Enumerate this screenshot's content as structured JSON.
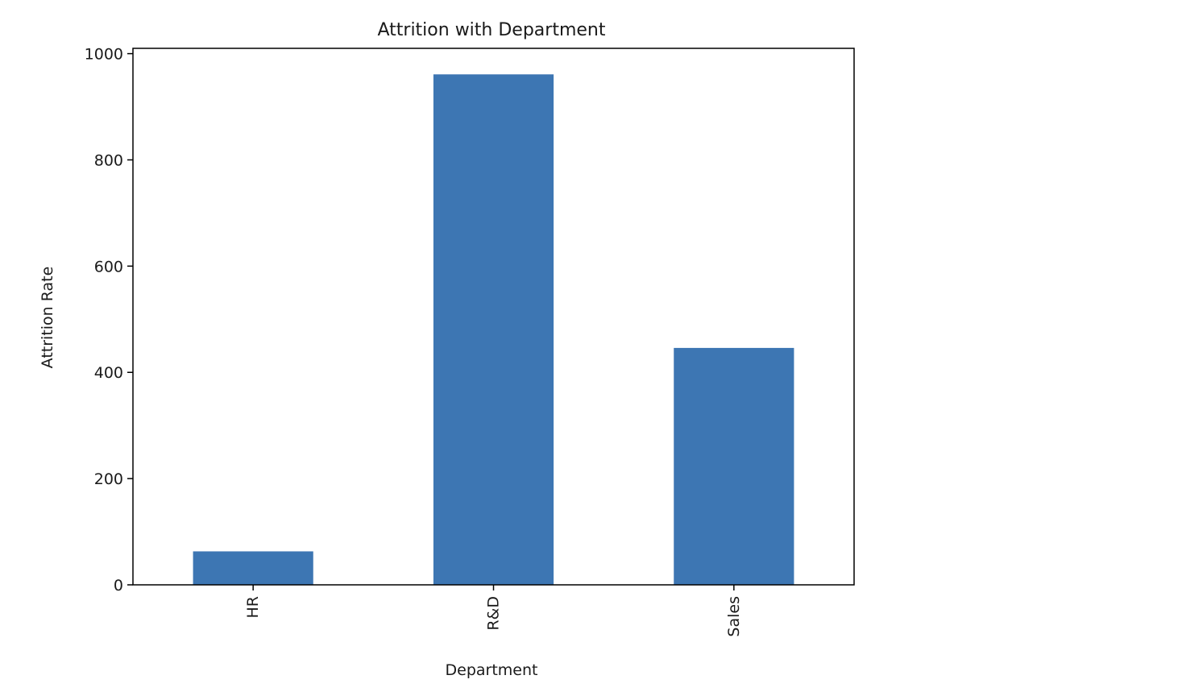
{
  "chart_data": {
    "type": "bar",
    "title": "Attrition with Department",
    "xlabel": "Department",
    "ylabel": "Attrition Rate",
    "categories": [
      "HR",
      "R&D",
      "Sales"
    ],
    "values": [
      63,
      961,
      446
    ],
    "ylim": [
      0,
      1010
    ],
    "yticks": [
      0,
      200,
      400,
      600,
      800,
      1000
    ],
    "grid": false,
    "legend": "none",
    "bar_color": "#3d76b3",
    "x_tick_rotation": "vertical"
  }
}
